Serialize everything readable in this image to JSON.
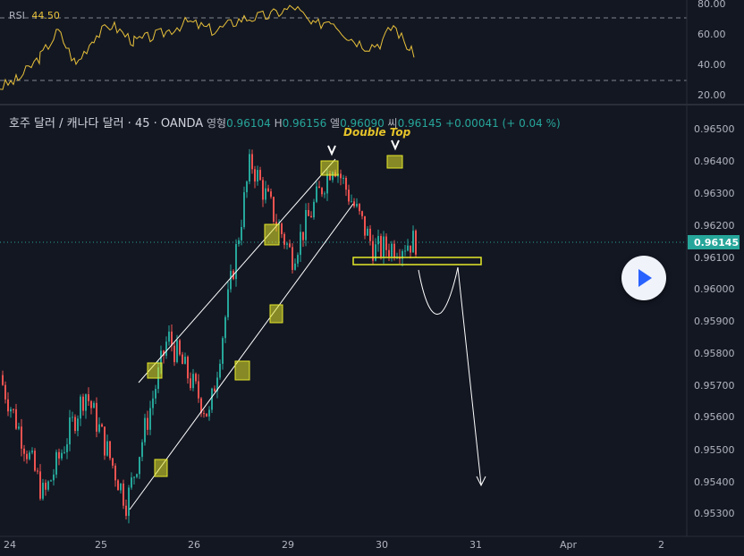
{
  "rsi": {
    "label": "RSI",
    "value": "44.50",
    "ticks": [
      "80.00",
      "60.00",
      "40.00",
      "20.00"
    ],
    "overbought": 70,
    "oversold": 30
  },
  "legend": {
    "symbol": "호주 달러 / 캐나다 달러 · 45 · OANDA",
    "open_label": "영형",
    "open": "0.96104",
    "high_label": "H",
    "high": "0.96156",
    "low_label": "엘",
    "low": "0.96090",
    "close_label": "씨",
    "close": "0.96145",
    "change": "+0.00041 (+ 0.04 %)"
  },
  "annotation": "Double Top",
  "price_axis": {
    "ticks": [
      "0.96500",
      "0.96400",
      "0.96300",
      "0.96200",
      "0.96100",
      "0.96000",
      "0.95900",
      "0.95800",
      "0.95700",
      "0.95600",
      "0.95500",
      "0.95400",
      "0.95300"
    ],
    "current_price": "0.96145"
  },
  "time_axis": {
    "ticks": [
      "24",
      "25",
      "26",
      "29",
      "30",
      "31",
      "Apr",
      "2"
    ]
  },
  "colors": {
    "up": "#26a69a",
    "down": "#ef5350",
    "rsi_line": "#e8c13a",
    "marker": "#e5e829",
    "background": "#131722"
  },
  "play_icon": "play-button-icon",
  "chart_data": {
    "type": "candlestick",
    "ylim": [
      0.9525,
      0.9655
    ],
    "key_levels": {
      "neckline": 0.9608,
      "double_top": 0.964,
      "projected_target": 0.954
    },
    "swing_points": [
      0.957,
      0.9535,
      0.9568,
      0.9533,
      0.9585,
      0.956,
      0.964,
      0.961,
      0.964,
      0.9612,
      0.9615
    ]
  }
}
